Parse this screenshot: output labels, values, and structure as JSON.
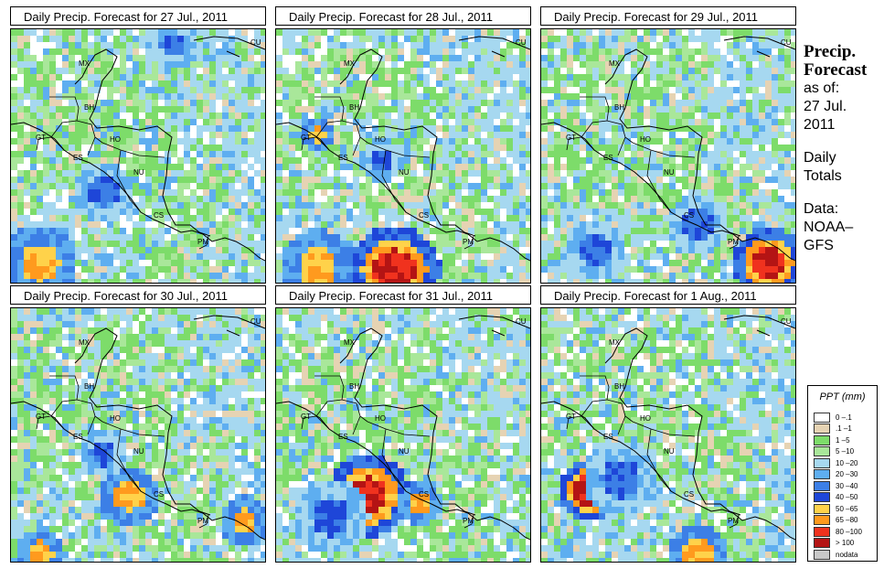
{
  "panels": [
    {
      "title": "Daily Precip. Forecast for  27 Jul., 2011",
      "seed": 11,
      "blobs": [
        [
          0.1,
          0.9,
          0.15,
          "orange"
        ],
        [
          0.62,
          0.05,
          0.1,
          "blue"
        ],
        [
          0.35,
          0.62,
          0.12,
          "blue"
        ]
      ]
    },
    {
      "title": "Daily Precip. Forecast for  28 Jul., 2011",
      "seed": 23,
      "blobs": [
        [
          0.45,
          0.93,
          0.18,
          "red"
        ],
        [
          0.15,
          0.92,
          0.15,
          "orange"
        ],
        [
          0.15,
          0.4,
          0.07,
          "orange"
        ],
        [
          0.4,
          0.5,
          0.08,
          "blue"
        ]
      ]
    },
    {
      "title": "Daily Precip. Forecast for  29 Jul., 2011",
      "seed": 37,
      "blobs": [
        [
          0.88,
          0.9,
          0.14,
          "red"
        ],
        [
          0.6,
          0.75,
          0.12,
          "blue"
        ],
        [
          0.2,
          0.85,
          0.12,
          "blue"
        ]
      ]
    },
    {
      "title": "Daily Precip. Forecast for  30 Jul., 2011",
      "seed": 41,
      "blobs": [
        [
          0.45,
          0.72,
          0.12,
          "orange"
        ],
        [
          0.9,
          0.82,
          0.1,
          "orange"
        ],
        [
          0.1,
          0.95,
          0.1,
          "orange"
        ],
        [
          0.35,
          0.55,
          0.1,
          "blue"
        ]
      ]
    },
    {
      "title": "Daily Precip. Forecast for  31 Jul., 2011",
      "seed": 53,
      "blobs": [
        [
          0.35,
          0.72,
          0.16,
          "red"
        ],
        [
          0.2,
          0.8,
          0.15,
          "blue"
        ],
        [
          0.55,
          0.75,
          0.08,
          "orange"
        ]
      ]
    },
    {
      "title": "Daily Precip. Forecast for  1 Aug., 2011",
      "seed": 67,
      "blobs": [
        [
          0.17,
          0.7,
          0.12,
          "red"
        ],
        [
          0.3,
          0.65,
          0.15,
          "blue"
        ],
        [
          0.6,
          0.95,
          0.12,
          "orange"
        ]
      ]
    }
  ],
  "country_labels": [
    {
      "code": "CU"
    },
    {
      "code": "MX"
    },
    {
      "code": "BH"
    },
    {
      "code": "GT"
    },
    {
      "code": "HO"
    },
    {
      "code": "ES"
    },
    {
      "code": "NU"
    },
    {
      "code": "CS"
    },
    {
      "code": "PM"
    }
  ],
  "side": {
    "title_line1": "Precip.",
    "title_line2": "Forecast",
    "asof": "as of:",
    "date_line1": "27 Jul.",
    "date_line2": "2011",
    "daily_line1": "Daily",
    "daily_line2": "Totals",
    "data_line1": "Data:",
    "data_line2": "NOAA–",
    "data_line3": "GFS"
  },
  "legend": {
    "title": "PPT (mm)",
    "items": [
      {
        "label": "0 –.1",
        "color": "#ffffff"
      },
      {
        "label": ".1 –1",
        "color": "#e6d3b3"
      },
      {
        "label": "1 –5",
        "color": "#7ddc6a"
      },
      {
        "label": "5 –10",
        "color": "#a9e79a"
      },
      {
        "label": "10 –20",
        "color": "#a6d8f0"
      },
      {
        "label": "20 –30",
        "color": "#5eaef0"
      },
      {
        "label": "30 –40",
        "color": "#3c7fe6"
      },
      {
        "label": "40 –50",
        "color": "#1e46d8"
      },
      {
        "label": "50 –65",
        "color": "#ffd24a"
      },
      {
        "label": "65 –80",
        "color": "#ff9a1e"
      },
      {
        "label": "80 –100",
        "color": "#f0321e"
      },
      {
        "label": "> 100",
        "color": "#b41414"
      },
      {
        "label": "nodata",
        "color": "#c8c8c8"
      }
    ]
  }
}
